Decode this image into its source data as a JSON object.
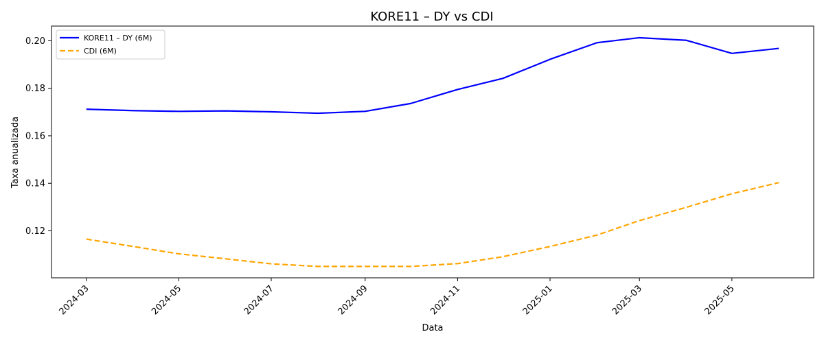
{
  "chart_data": {
    "type": "line",
    "title": "KORE11 – DY vs CDI",
    "xlabel": "Data",
    "ylabel": "Taxa anualizada",
    "x": [
      "2024-03",
      "2024-04",
      "2024-05",
      "2024-06",
      "2024-07",
      "2024-08",
      "2024-09",
      "2024-10",
      "2024-11",
      "2024-12",
      "2025-01",
      "2025-02",
      "2025-03",
      "2025-04",
      "2025-05",
      "2025-06"
    ],
    "x_ticks": [
      "2024-03",
      "2024-05",
      "2024-07",
      "2024-09",
      "2024-11",
      "2025-01",
      "2025-03",
      "2025-05"
    ],
    "y_ticks": [
      0.12,
      0.14,
      0.16,
      0.18,
      0.2
    ],
    "y_tick_labels": [
      "0.12",
      "0.14",
      "0.16",
      "0.18",
      "0.20"
    ],
    "ylim": [
      0.1002,
      0.2062
    ],
    "xlim": [
      "2024-02-07",
      "2025-06-24"
    ],
    "grid": false,
    "legend_position": "top-left",
    "series": [
      {
        "name": "KORE11 – DY (6M)",
        "color": "#0000ff",
        "style": "solid",
        "values": [
          0.1712,
          0.1706,
          0.1703,
          0.1705,
          0.1701,
          0.1695,
          0.1703,
          0.1736,
          0.1795,
          0.1842,
          0.1922,
          0.1992,
          0.2013,
          0.2002,
          0.1947,
          0.1968
        ]
      },
      {
        "name": "CDI (6M)",
        "color": "#ffa500",
        "style": "dashed",
        "values": [
          0.1165,
          0.1134,
          0.1103,
          0.1082,
          0.1061,
          0.105,
          0.105,
          0.105,
          0.1062,
          0.1091,
          0.1134,
          0.1182,
          0.1243,
          0.1299,
          0.1356,
          0.1403
        ]
      }
    ]
  }
}
